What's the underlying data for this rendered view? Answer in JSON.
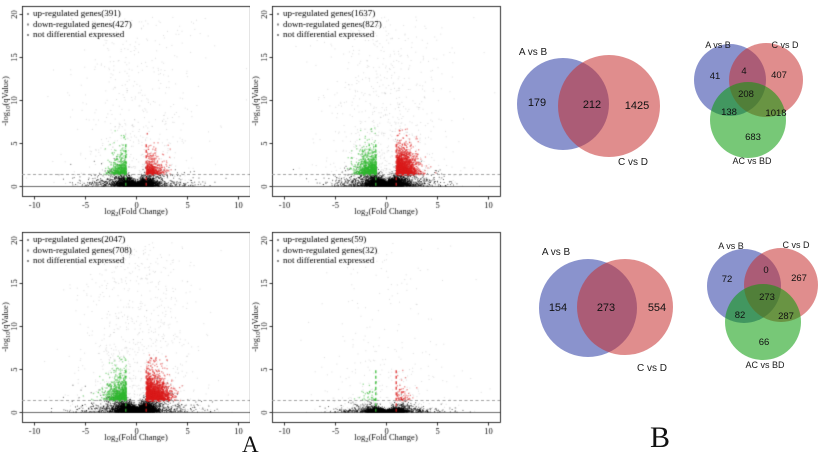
{
  "figure": {
    "panel_a_label": "A",
    "panel_b_label": "B",
    "background": "#ffffff"
  },
  "chart_data": [
    {
      "id": "volcano-top-left",
      "type": "scatter",
      "subtype": "volcano",
      "legend": [
        "up-regulated genes(391)",
        "down-regulated genes(427)",
        "not differential expressed"
      ],
      "up_count": 391,
      "down_count": 427,
      "xlabel": "log2(Fold Change)",
      "ylabel": "-log10(qValue)",
      "xlim": [
        -11,
        11
      ],
      "ylim": [
        0,
        20
      ],
      "xticks": [
        -10,
        -5,
        0,
        5,
        10
      ],
      "yticks": [
        0,
        5,
        10,
        15,
        20
      ],
      "fold_change_cutoff": 1,
      "q_value_cutoff": 1.3,
      "cutoff_line_top": 5,
      "colors": {
        "up": "#dd2222",
        "down": "#33bb33",
        "not_differential": "#000000",
        "threshold_line": "#999999"
      },
      "render": {
        "seed": 7,
        "ns_points": 6200,
        "sparse_points": 700,
        "sparse_exp": 2.0,
        "flatness": 1.0,
        "colored_spread": 1.0
      }
    },
    {
      "id": "volcano-top-right",
      "type": "scatter",
      "subtype": "volcano",
      "legend": [
        "up-regulated genes(1637)",
        "down-regulated genes(827)",
        "not differential expressed"
      ],
      "up_count": 1637,
      "down_count": 827,
      "xlabel": "log2(Fold Change)",
      "ylabel": "-log10(qValue)",
      "xlim": [
        -11,
        11
      ],
      "ylim": [
        0,
        20
      ],
      "xticks": [
        -10,
        -5,
        0,
        5,
        10
      ],
      "yticks": [
        0,
        5,
        10,
        15,
        20
      ],
      "fold_change_cutoff": 1,
      "q_value_cutoff": 1.3,
      "cutoff_line_top": 5,
      "colors": {
        "up": "#dd2222",
        "down": "#33bb33",
        "not_differential": "#000000",
        "threshold_line": "#999999"
      },
      "render": {
        "seed": 8,
        "ns_points": 8000,
        "sparse_points": 950,
        "sparse_exp": 1.9,
        "flatness": 1.15,
        "colored_spread": 1.15
      }
    },
    {
      "id": "volcano-bottom-left",
      "type": "scatter",
      "subtype": "volcano",
      "legend": [
        "up-regulated genes(2047)",
        "down-regulated genes(708)",
        "not differential expressed"
      ],
      "up_count": 2047,
      "down_count": 708,
      "xlabel": "log2(Fold Change)",
      "ylabel": "-log10(qValue)",
      "xlim": [
        -11,
        11
      ],
      "ylim": [
        0,
        20
      ],
      "xticks": [
        -10,
        -5,
        0,
        5,
        10
      ],
      "yticks": [
        0,
        5,
        10,
        15,
        20
      ],
      "fold_change_cutoff": 1,
      "q_value_cutoff": 1.3,
      "cutoff_line_top": 5,
      "colors": {
        "up": "#dd2222",
        "down": "#33bb33",
        "not_differential": "#000000",
        "threshold_line": "#999999"
      },
      "render": {
        "seed": 9,
        "ns_points": 8000,
        "sparse_points": 950,
        "sparse_exp": 1.9,
        "flatness": 1.15,
        "colored_spread": 1.2
      }
    },
    {
      "id": "volcano-bottom-right",
      "type": "scatter",
      "subtype": "volcano",
      "legend": [
        "up-regulated genes(59)",
        "down-regulated genes(32)",
        "not differential expressed"
      ],
      "up_count": 59,
      "down_count": 32,
      "xlabel": "log2(Fold Change)",
      "ylabel": "-log10(qValue)",
      "xlim": [
        -11,
        11
      ],
      "ylim": [
        0,
        20
      ],
      "xticks": [
        -10,
        -5,
        0,
        5,
        10
      ],
      "yticks": [
        0,
        5,
        10,
        15,
        20
      ],
      "fold_change_cutoff": 1,
      "q_value_cutoff": 1.3,
      "cutoff_line_top": 5,
      "colors": {
        "up": "#dd2222",
        "down": "#33bb33",
        "not_differential": "#000000",
        "threshold_line": "#999999"
      },
      "render": {
        "seed": 10,
        "ns_points": 5200,
        "sparse_points": 420,
        "sparse_exp": 2.8,
        "flatness": 0.5,
        "colored_spread": 0.8
      }
    },
    {
      "id": "venn2-top",
      "type": "venn",
      "sets": [
        "A vs B",
        "C vs D"
      ],
      "regions": {
        "left_only": 179,
        "overlap": 212,
        "right_only": 1425
      },
      "colors": {
        "left": "#2a3ba4",
        "right": "#c73030"
      },
      "fill_opacity": 0.55
    },
    {
      "id": "venn3-top",
      "type": "venn",
      "sets": [
        "A vs B",
        "C vs D",
        "AC vs BD"
      ],
      "regions": {
        "a_only": 41,
        "a_b": 4,
        "b_only": 407,
        "a_b_c": 208,
        "a_c": 138,
        "b_c": 1018,
        "c_only": 683
      },
      "colors": {
        "a": "#2a3ba4",
        "b": "#c73030",
        "c": "#089b08"
      },
      "fill_opacity": 0.55
    },
    {
      "id": "venn2-bottom",
      "type": "venn",
      "sets": [
        "A vs B",
        "C vs D"
      ],
      "regions": {
        "left_only": 154,
        "overlap": 273,
        "right_only": 554
      },
      "colors": {
        "left": "#2a3ba4",
        "right": "#c73030"
      },
      "fill_opacity": 0.55
    },
    {
      "id": "venn3-bottom",
      "type": "venn",
      "sets": [
        "A vs B",
        "C vs D",
        "AC vs BD"
      ],
      "regions": {
        "a_only": 72,
        "a_b": 0,
        "b_only": 267,
        "a_b_c": 273,
        "a_c": 82,
        "b_c": 287,
        "c_only": 66
      },
      "colors": {
        "a": "#2a3ba4",
        "b": "#c73030",
        "c": "#089b08"
      },
      "fill_opacity": 0.55
    }
  ]
}
